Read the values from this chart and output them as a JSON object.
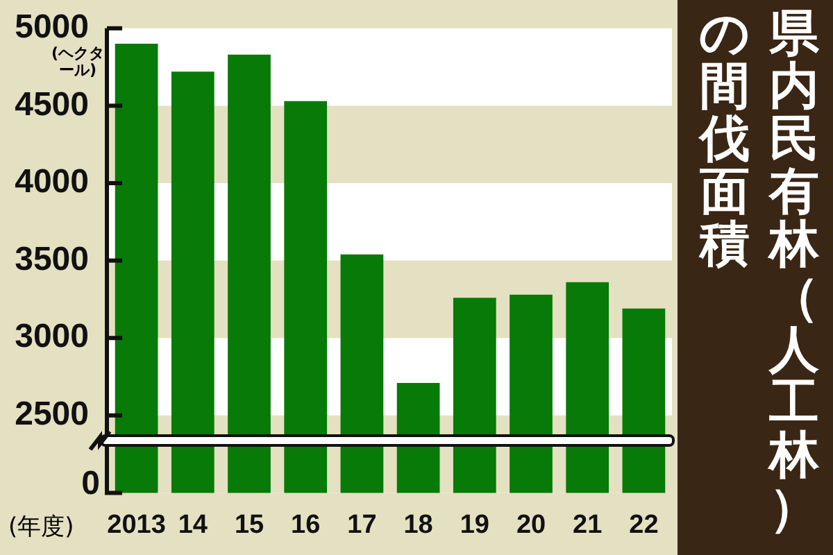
{
  "chart_data": {
    "type": "bar",
    "title": "県内民有林（人工林）の間伐面積",
    "ylabel": "(ヘクタール)",
    "xlabel": "(年度)",
    "categories": [
      "2013",
      "14",
      "15",
      "16",
      "17",
      "18",
      "19",
      "20",
      "21",
      "22"
    ],
    "values": [
      4900,
      4720,
      4830,
      4530,
      3540,
      2710,
      3260,
      3280,
      3360,
      3190
    ],
    "color": "#077a07",
    "ylim": [
      2000,
      5000
    ],
    "yticks": [
      2500,
      3000,
      3500,
      4000,
      4500,
      5000
    ],
    "legend": false,
    "bands": [
      {
        "axis": "y",
        "from": 4000,
        "to": 4500,
        "color": "#e4e0c2"
      },
      {
        "axis": "y",
        "from": 3000,
        "to": 3500,
        "color": "#e4e0c2"
      },
      {
        "axis": "y",
        "from": 2000,
        "to": 2500,
        "color": "#e4e0c2"
      }
    ],
    "annotations": [
      "0"
    ]
  }
}
